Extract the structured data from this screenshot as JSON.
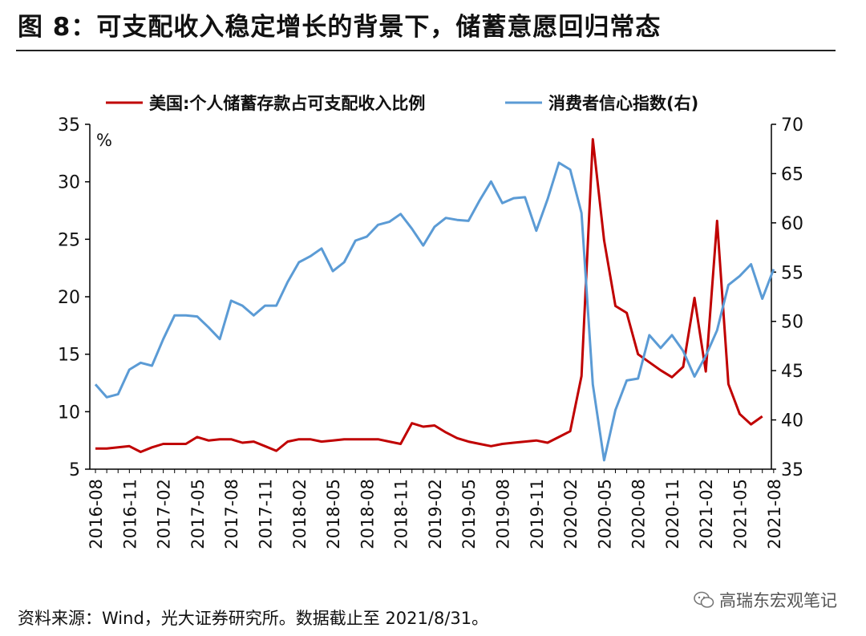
{
  "title": "图 8：可支配收入稳定增长的背景下，储蓄意愿回归常态",
  "source": "资料来源：Wind，光大证券研究所。数据截止至 2021/8/31。",
  "watermark": "高瑞东宏观笔记",
  "colors": {
    "red": "#c00000",
    "blue": "#5b9bd5",
    "axis": "#000000"
  },
  "chart_data": {
    "type": "line",
    "title": "",
    "unit_left": "%",
    "x_tick_labels": [
      "2016-08",
      "2016-11",
      "2017-02",
      "2017-05",
      "2017-08",
      "2017-11",
      "2018-02",
      "2018-05",
      "2018-08",
      "2018-11",
      "2019-02",
      "2019-05",
      "2019-08",
      "2019-11",
      "2020-02",
      "2020-05",
      "2020-08",
      "2020-11",
      "2021-02",
      "2021-05",
      "2021-08"
    ],
    "y_left": {
      "min": 5,
      "max": 35,
      "step": 5,
      "ticks": [
        "5",
        "10",
        "15",
        "20",
        "25",
        "30",
        "35"
      ]
    },
    "y_right": {
      "min": 35,
      "max": 70,
      "step": 5,
      "ticks": [
        "35",
        "40",
        "45",
        "50",
        "55",
        "60",
        "65",
        "70"
      ]
    },
    "legend_position": "top",
    "series": [
      {
        "name": "美国:个人储蓄存款占可支配收入比例",
        "axis": "left",
        "color": "#c00000",
        "start": "2016-08",
        "values": [
          6.8,
          6.8,
          6.9,
          7.0,
          6.5,
          6.9,
          7.2,
          7.2,
          7.2,
          7.8,
          7.5,
          7.6,
          7.6,
          7.3,
          7.4,
          7.0,
          6.6,
          7.4,
          7.6,
          7.6,
          7.4,
          7.5,
          7.6,
          7.6,
          7.6,
          7.6,
          7.4,
          7.2,
          9.0,
          8.7,
          8.8,
          8.2,
          7.7,
          7.4,
          7.2,
          7.0,
          7.2,
          7.3,
          7.4,
          7.5,
          7.3,
          7.8,
          8.3,
          13.1,
          33.7,
          24.9,
          19.2,
          18.6,
          15.0,
          14.3,
          13.6,
          13.0,
          13.9,
          19.9,
          13.5,
          26.6,
          12.4,
          9.8,
          8.9,
          9.6
        ]
      },
      {
        "name": "消费者信心指数(右)",
        "axis": "right",
        "color": "#5b9bd5",
        "start": "2016-08",
        "values": [
          43.6,
          42.3,
          42.6,
          45.1,
          45.8,
          45.5,
          48.2,
          50.6,
          50.6,
          50.5,
          49.4,
          48.2,
          52.1,
          51.6,
          50.6,
          51.6,
          51.6,
          54.0,
          56.0,
          56.6,
          57.4,
          55.1,
          56.0,
          58.2,
          58.6,
          59.8,
          60.1,
          60.9,
          59.4,
          57.7,
          59.6,
          60.5,
          60.3,
          60.2,
          62.3,
          64.2,
          62.0,
          62.5,
          62.6,
          59.2,
          62.4,
          66.1,
          65.4,
          61.0,
          43.6,
          35.9,
          41.0,
          44.0,
          44.2,
          48.6,
          47.3,
          48.6,
          47.0,
          44.4,
          46.5,
          49.1,
          53.7,
          54.6,
          55.8,
          52.3,
          55.3
        ]
      }
    ]
  }
}
